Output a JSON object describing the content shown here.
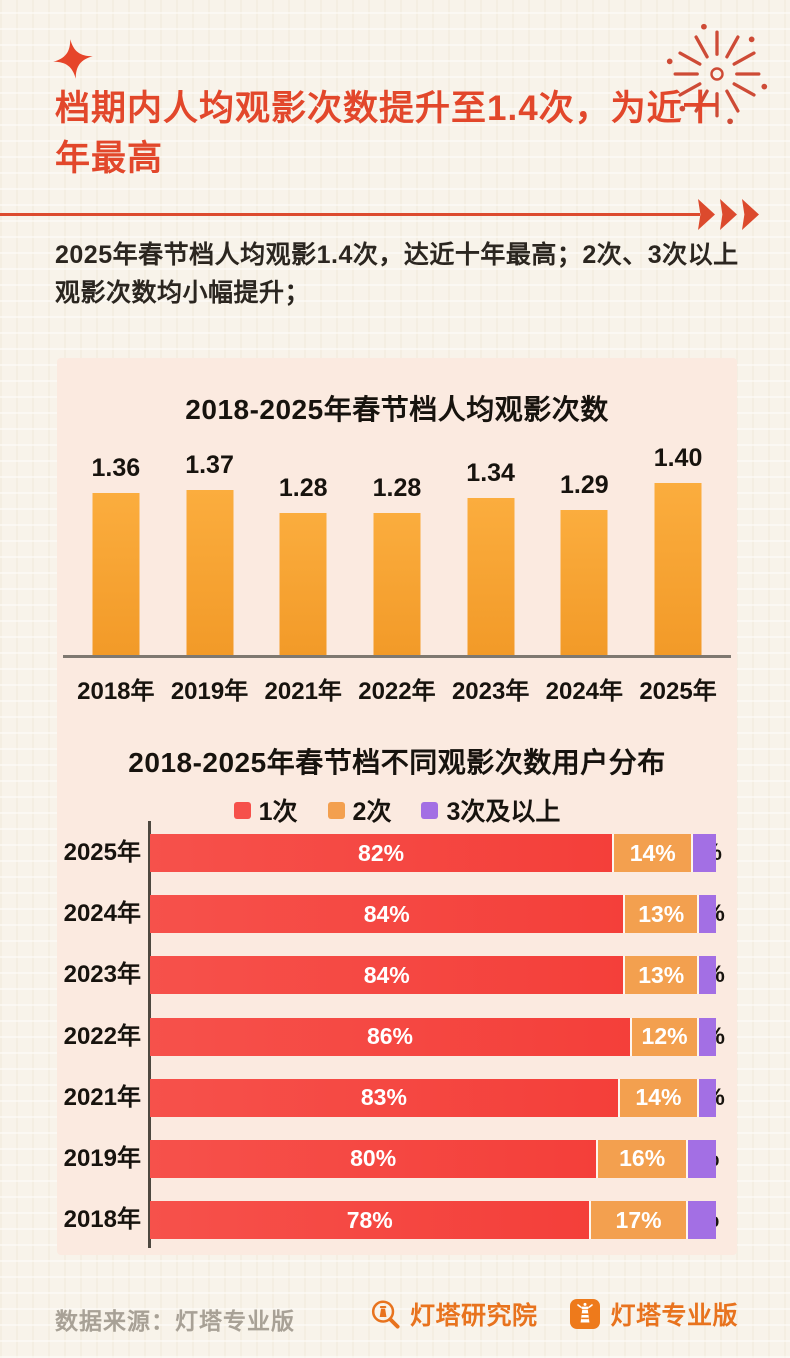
{
  "header": {
    "title": "档期内人均观影次数提升至1.4次，为近十年最高",
    "summary": "2025年春节档人均观影1.4次，达近十年最高；2次、3次以上观影次数均小幅提升；"
  },
  "icons": {
    "top_left": "sparkle-icon",
    "top_right": "fireworks-icon",
    "divider_end": "triple-arrow-icon",
    "logo_research": "lighthouse-magnifier-icon",
    "logo_pro": "lighthouse-badge-icon"
  },
  "colors": {
    "accent_red": "#e2472b",
    "divider": "#dc4a2d",
    "panel_bg": "#fbeae0",
    "page_bg": "#f8f3ea",
    "bar_orange_top": "#fbad3e",
    "bar_orange_bottom": "#f29a28",
    "seg_red": "#f6514b",
    "seg_orange": "#f3a04f",
    "seg_purple": "#a36fe4",
    "logo_orange": "#e8731e"
  },
  "chart_data": [
    {
      "type": "bar",
      "title": "2018-2025年春节档人均观影次数",
      "categories": [
        "2018年",
        "2019年",
        "2021年",
        "2022年",
        "2023年",
        "2024年",
        "2025年"
      ],
      "values": [
        1.36,
        1.37,
        1.28,
        1.28,
        1.34,
        1.29,
        1.4
      ],
      "value_labels": [
        "1.36",
        "1.37",
        "1.28",
        "1.28",
        "1.34",
        "1.29",
        "1.40"
      ],
      "ylim": [
        0.7,
        1.55
      ],
      "grid": false,
      "legend_position": "none",
      "bar_color_top": "#fbad3e",
      "bar_color_bottom": "#f29a28",
      "xlabel": "",
      "ylabel": ""
    },
    {
      "type": "bar",
      "orientation": "horizontal-stacked",
      "title": "2018-2025年春节档不同观影次数用户分布",
      "categories": [
        "2025年",
        "2024年",
        "2023年",
        "2022年",
        "2021年",
        "2019年",
        "2018年"
      ],
      "series": [
        {
          "name": "1次",
          "color": "#f6514b",
          "color2": "#f43f3a",
          "values": [
            82,
            84,
            84,
            86,
            83,
            80,
            78
          ]
        },
        {
          "name": "2次",
          "color": "#f3a04f",
          "color2": "#f3a04f",
          "values": [
            14,
            13,
            13,
            12,
            14,
            16,
            17
          ]
        },
        {
          "name": "3次及以上",
          "color": "#a36fe4",
          "color2": "#a36fe4",
          "values": [
            4,
            3,
            3,
            3,
            3,
            5,
            5
          ]
        }
      ],
      "value_suffix": "%",
      "xlim": [
        0,
        100
      ],
      "grid": false,
      "legend_position": "top"
    }
  ],
  "footer": {
    "source": "数据来源：灯塔专业版",
    "logos": [
      {
        "label": "灯塔研究院"
      },
      {
        "label": "灯塔专业版"
      }
    ]
  }
}
